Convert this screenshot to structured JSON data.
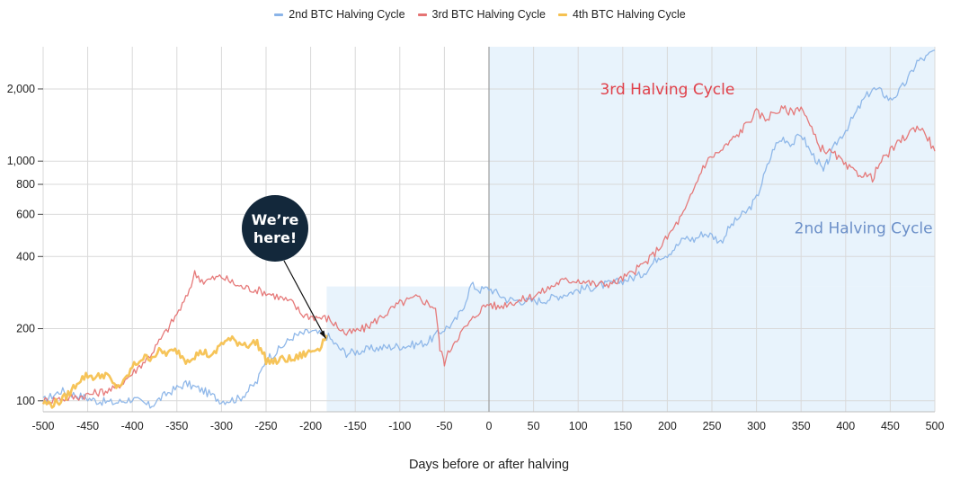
{
  "legend": [
    {
      "name": "2nd BTC Halving Cycle",
      "color": "#8ab4e8"
    },
    {
      "name": "3rd BTC Halving Cycle",
      "color": "#e57373"
    },
    {
      "name": "4th BTC Halving Cycle",
      "color": "#f5c150"
    }
  ],
  "chart_data": {
    "type": "line",
    "xlabel": "Days before or after halving",
    "ylabel": "",
    "log_y": true,
    "xlim": [
      -500,
      500
    ],
    "ylim": [
      90,
      3000
    ],
    "x_ticks": [
      -500,
      -450,
      -400,
      -350,
      -300,
      -250,
      -200,
      -150,
      -100,
      -50,
      0,
      50,
      100,
      150,
      200,
      250,
      300,
      350,
      400,
      450,
      500
    ],
    "x_tick_labels": [
      "-500",
      "-450",
      "-400",
      "-350",
      "-300",
      "-250",
      "-200",
      "-150",
      "-100",
      "-50",
      "0",
      "50",
      "100",
      "150",
      "200",
      "250",
      "300",
      "350",
      "400",
      "450",
      "500"
    ],
    "y_ticks": [
      100,
      200,
      400,
      600,
      800,
      1000,
      2000
    ],
    "y_tick_labels": [
      "100",
      "200",
      "400",
      "600",
      "800",
      "1,000",
      "2,000"
    ],
    "grid": true,
    "legend_position": "top",
    "series": [
      {
        "name": "2nd BTC Halving Cycle",
        "color": "#8ab4e8",
        "x": [
          -500,
          -480,
          -460,
          -440,
          -420,
          -400,
          -380,
          -360,
          -340,
          -320,
          -300,
          -280,
          -260,
          -250,
          -240,
          -220,
          -200,
          -190,
          -180,
          -170,
          -160,
          -150,
          -130,
          -110,
          -90,
          -70,
          -50,
          -40,
          -30,
          -20,
          -10,
          0,
          20,
          40,
          60,
          80,
          100,
          120,
          140,
          160,
          170,
          180,
          190,
          200,
          210,
          220,
          230,
          240,
          250,
          260,
          270,
          280,
          290,
          300,
          310,
          320,
          330,
          340,
          350,
          360,
          370,
          375,
          380,
          390,
          400,
          410,
          420,
          430,
          440,
          450,
          460,
          470,
          480,
          490,
          500
        ],
        "y": [
          100,
          110,
          105,
          100,
          98,
          102,
          95,
          108,
          118,
          110,
          100,
          102,
          120,
          150,
          158,
          185,
          195,
          190,
          185,
          168,
          158,
          160,
          165,
          168,
          170,
          175,
          200,
          210,
          240,
          305,
          290,
          295,
          265,
          260,
          262,
          275,
          290,
          300,
          310,
          325,
          335,
          360,
          400,
          410,
          440,
          480,
          470,
          500,
          490,
          460,
          530,
          580,
          620,
          700,
          900,
          1150,
          1250,
          1180,
          1300,
          1100,
          980,
          900,
          1000,
          1200,
          1350,
          1550,
          1800,
          2000,
          1950,
          1800,
          1950,
          2200,
          2600,
          2700,
          2900
        ]
      },
      {
        "name": "3rd BTC Halving Cycle",
        "color": "#e57373",
        "x": [
          -500,
          -480,
          -460,
          -440,
          -420,
          -400,
          -380,
          -360,
          -340,
          -330,
          -320,
          -300,
          -280,
          -260,
          -240,
          -230,
          -220,
          -210,
          -200,
          -180,
          -160,
          -140,
          -120,
          -100,
          -80,
          -60,
          -55,
          -50,
          -40,
          -30,
          -20,
          -10,
          0,
          10,
          20,
          40,
          60,
          80,
          100,
          120,
          140,
          160,
          180,
          200,
          220,
          240,
          250,
          260,
          270,
          280,
          290,
          300,
          310,
          320,
          330,
          340,
          350,
          360,
          370,
          380,
          390,
          400,
          410,
          420,
          430,
          440,
          460,
          480,
          490,
          500
        ],
        "y": [
          100,
          102,
          104,
          108,
          112,
          130,
          155,
          200,
          265,
          340,
          315,
          330,
          300,
          290,
          275,
          265,
          255,
          230,
          225,
          220,
          190,
          200,
          225,
          255,
          270,
          245,
          165,
          145,
          175,
          195,
          215,
          240,
          255,
          245,
          255,
          265,
          285,
          315,
          320,
          305,
          310,
          340,
          390,
          480,
          620,
          950,
          1050,
          1100,
          1200,
          1300,
          1450,
          1600,
          1500,
          1600,
          1650,
          1600,
          1700,
          1400,
          1150,
          1100,
          1050,
          950,
          900,
          880,
          850,
          1000,
          1200,
          1400,
          1300,
          1100
        ]
      },
      {
        "name": "4th BTC Halving Cycle",
        "color": "#f5c150",
        "x": [
          -500,
          -490,
          -480,
          -470,
          -460,
          -450,
          -440,
          -430,
          -420,
          -410,
          -400,
          -390,
          -380,
          -370,
          -360,
          -350,
          -340,
          -330,
          -320,
          -310,
          -300,
          -290,
          -280,
          -270,
          -260,
          -250,
          -240,
          -230,
          -220,
          -210,
          -200,
          -190,
          -182
        ],
        "y": [
          98,
          97,
          100,
          108,
          122,
          128,
          125,
          130,
          115,
          118,
          138,
          150,
          152,
          160,
          158,
          162,
          148,
          155,
          160,
          152,
          175,
          180,
          175,
          172,
          175,
          148,
          145,
          150,
          148,
          155,
          160,
          168,
          188
        ]
      }
    ],
    "annotations": [
      {
        "text": "3rd Halving Cycle",
        "color": "#e0404a",
        "x": 200,
        "y": 1900
      },
      {
        "text": "2nd Halving Cycle",
        "color": "#6b8fc8",
        "x": 420,
        "y": 500
      }
    ],
    "callout": {
      "line1": "We’re",
      "line2": "here!"
    }
  }
}
